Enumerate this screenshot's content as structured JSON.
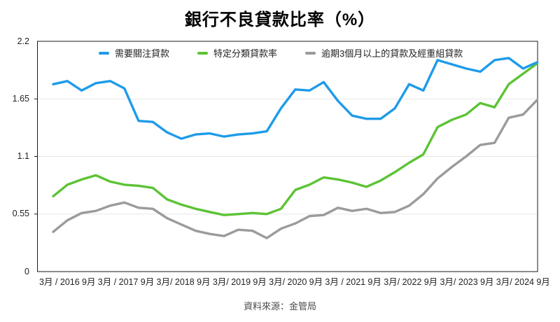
{
  "title": "銀行不良貸款比率（%）",
  "source": "資料來源：金管局",
  "legend": [
    {
      "label": "需要關注貸款",
      "color": "#1e9be9"
    },
    {
      "label": "特定分類貸款率",
      "color": "#5cc335"
    },
    {
      "label": "逾期3個月以上的貸款及經重組貸款",
      "color": "#9b9b9b"
    }
  ],
  "y_axis": {
    "ticks": [
      {
        "value": 2.2,
        "label": "2.2"
      },
      {
        "value": 1.65,
        "label": "1.65"
      },
      {
        "value": 1.1,
        "label": "1.1"
      },
      {
        "value": 0.55,
        "label": "0.55"
      },
      {
        "value": 0,
        "label": "0"
      }
    ]
  },
  "x_axis": {
    "labels": [
      "3月 / 2016",
      "9月",
      "3月 / 2017",
      "9月",
      "3月/ 2018",
      "9月",
      "3月/ 2019",
      "9月",
      "3月/ 2020",
      "9月",
      "3月 / 2021",
      "9月",
      "3月/ 2022",
      "9月",
      "3月/ 2023",
      "9月",
      "3月/ 2024",
      "9月"
    ]
  },
  "chart_data": {
    "type": "line",
    "title": "銀行不良貸款比率（%）",
    "x_unit": "quarterly",
    "x_tick_labels": [
      "3月 / 2016",
      "9月",
      "3月 / 2017",
      "9月",
      "3月/ 2018",
      "9月",
      "3月/ 2019",
      "9月",
      "3月/ 2020",
      "9月",
      "3月 / 2021",
      "9月",
      "3月/ 2022",
      "9月",
      "3月/ 2023",
      "9月",
      "3月/ 2024",
      "9月"
    ],
    "ylim": [
      0,
      2.2
    ],
    "gridlines": [
      0.55,
      1.1,
      1.65
    ],
    "legend_position": "top-inside",
    "series": [
      {
        "id": "overdue-restructured-line",
        "name": "逾期3個月以上的貸款及經重組貸款",
        "color": "#9b9b9b",
        "values": [
          0.38,
          0.49,
          0.56,
          0.58,
          0.63,
          0.66,
          0.61,
          0.6,
          0.51,
          0.45,
          0.39,
          0.36,
          0.34,
          0.4,
          0.39,
          0.32,
          0.41,
          0.46,
          0.53,
          0.54,
          0.61,
          0.58,
          0.6,
          0.56,
          0.57,
          0.63,
          0.74,
          0.89,
          1.0,
          1.1,
          1.21,
          1.23,
          1.47,
          1.5,
          1.64
        ]
      },
      {
        "id": "classified-loans-line",
        "name": "特定分類貸款率",
        "color": "#5cc335",
        "values": [
          0.72,
          0.83,
          0.88,
          0.92,
          0.86,
          0.83,
          0.82,
          0.8,
          0.69,
          0.64,
          0.6,
          0.57,
          0.54,
          0.55,
          0.56,
          0.55,
          0.6,
          0.78,
          0.83,
          0.9,
          0.88,
          0.85,
          0.81,
          0.87,
          0.95,
          1.04,
          1.12,
          1.38,
          1.45,
          1.5,
          1.61,
          1.57,
          1.79,
          1.89,
          1.99
        ]
      },
      {
        "id": "special-mention-line",
        "name": "需要關注貸款",
        "color": "#1e9be9",
        "values": [
          1.79,
          1.82,
          1.73,
          1.8,
          1.82,
          1.75,
          1.44,
          1.43,
          1.33,
          1.27,
          1.31,
          1.32,
          1.29,
          1.31,
          1.32,
          1.34,
          1.56,
          1.74,
          1.73,
          1.81,
          1.63,
          1.49,
          1.46,
          1.46,
          1.56,
          1.79,
          1.73,
          2.02,
          1.98,
          1.94,
          1.91,
          2.02,
          2.04,
          1.94,
          2.0
        ]
      }
    ]
  }
}
